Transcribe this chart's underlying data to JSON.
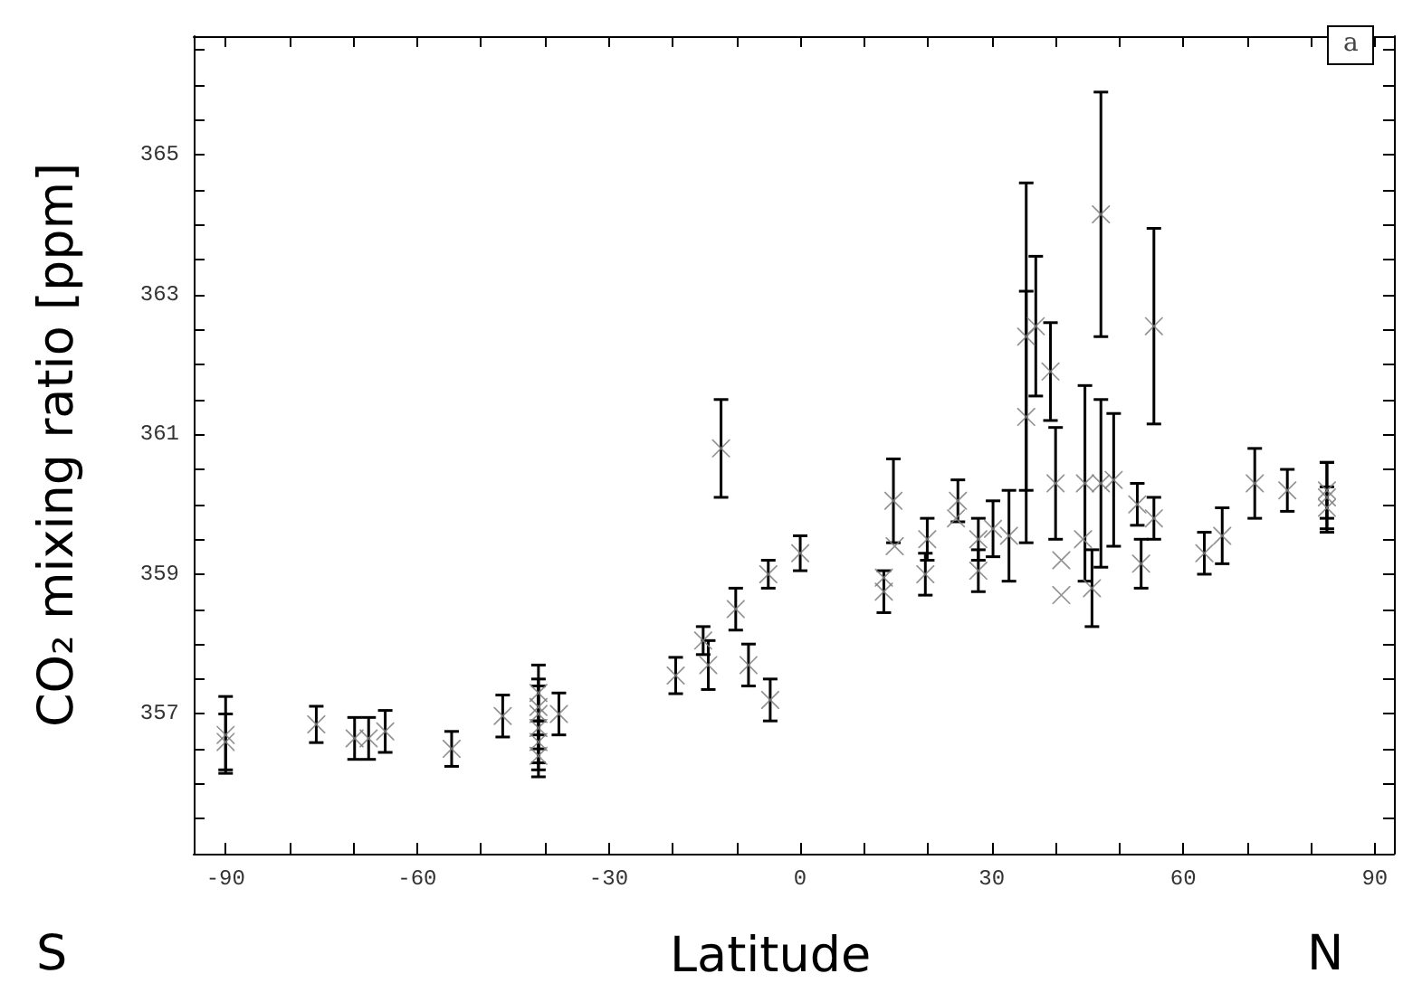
{
  "chart_data": {
    "type": "scatter",
    "xlabel": "Latitude",
    "ylabel": "CO₂ mixing ratio [ppm]",
    "annotations": [
      "S",
      "N",
      "a"
    ],
    "xlim": [
      -95,
      93
    ],
    "ylim": [
      355,
      366.7
    ],
    "xticks": [
      -90,
      {
        "value": -80,
        "label": null
      },
      {
        "value": -70,
        "label": null
      },
      -60,
      {
        "value": -50,
        "label": null
      },
      {
        "value": -40,
        "label": null
      },
      -30,
      {
        "value": -20,
        "label": null
      },
      {
        "value": -10,
        "label": null
      },
      0,
      {
        "value": 10,
        "label": null
      },
      {
        "value": 20,
        "label": null
      },
      30,
      {
        "value": 40,
        "label": null
      },
      {
        "value": 50,
        "label": null
      },
      60,
      {
        "value": 70,
        "label": null
      },
      {
        "value": 80,
        "label": null
      },
      90
    ],
    "yticks": [
      {
        "value": 355.5,
        "label": null
      },
      {
        "value": 356,
        "label": null
      },
      {
        "value": 356.5,
        "label": null
      },
      357,
      {
        "value": 357.5,
        "label": null
      },
      {
        "value": 358,
        "label": null
      },
      {
        "value": 358.5,
        "label": null
      },
      359,
      {
        "value": 359.5,
        "label": null
      },
      {
        "value": 360,
        "label": null
      },
      {
        "value": 360.5,
        "label": null
      },
      361,
      {
        "value": 361.5,
        "label": null
      },
      {
        "value": 362,
        "label": null
      },
      {
        "value": 362.5,
        "label": null
      },
      363,
      {
        "value": 363.5,
        "label": null
      },
      {
        "value": 364,
        "label": null
      },
      {
        "value": 364.5,
        "label": null
      },
      365,
      {
        "value": 365.5,
        "label": null
      },
      {
        "value": 366,
        "label": null
      },
      {
        "value": 366.5,
        "label": null
      }
    ],
    "marker": "cross",
    "grid": false,
    "series": [
      {
        "color": "#808080",
        "x": [
          -90,
          -90,
          -75.8,
          -69.8,
          -67.6,
          -65,
          -54.6,
          -46.6,
          -41,
          -41,
          -41,
          -41,
          -41,
          -41,
          -37.8,
          -19.5,
          -15.2,
          -14.4,
          -10.1,
          -8.1,
          -4.7,
          -5,
          0,
          -12.4,
          13.1,
          13.1,
          14.6,
          14.8,
          19.6,
          19.9,
          24.7,
          24.4,
          27.9,
          27.9,
          30.2,
          32.7,
          35.4,
          35.4,
          36.9,
          39.2,
          40,
          40.9,
          40.9,
          44.6,
          44.3,
          45.7,
          47.1,
          47.1,
          49.1,
          52.8,
          53.4,
          55.4,
          55.4,
          63.3,
          66.1,
          71.2,
          76.3,
          82.5,
          82.5,
          82.5
        ],
        "values": [
          356.7,
          356.6,
          356.85,
          356.65,
          356.65,
          356.75,
          356.5,
          356.97,
          357.3,
          357,
          356.8,
          356.6,
          356.4,
          357.1,
          357,
          357.55,
          358.05,
          357.7,
          358.5,
          357.7,
          357.2,
          359,
          359.3,
          360.8,
          358.75,
          358.95,
          360.05,
          359.4,
          359,
          359.5,
          360.05,
          359.8,
          359.5,
          359.05,
          359.65,
          359.55,
          362.4,
          361.25,
          362.55,
          361.9,
          360.3,
          359.2,
          358.7,
          360.3,
          359.5,
          358.8,
          364.15,
          360.3,
          360.35,
          360,
          359.15,
          359.8,
          362.55,
          359.3,
          359.55,
          360.3,
          360.2,
          360.2,
          360.1,
          359.95
        ],
        "errors": [
          0.55,
          0.4,
          0.26,
          0.3,
          0.3,
          0.3,
          0.25,
          0.3,
          0.4,
          0.5,
          0.6,
          0.3,
          0.3,
          null,
          0.3,
          0.26,
          0.2,
          0.35,
          0.3,
          0.3,
          0.3,
          0.2,
          0.25,
          0.7,
          0.3,
          null,
          0.6,
          null,
          0.3,
          0.3,
          0.3,
          null,
          0.3,
          0.3,
          0.4,
          0.65,
          2.2,
          1.8,
          1,
          0.7,
          0.8,
          null,
          null,
          1.4,
          null,
          0.55,
          1.75,
          1.2,
          0.95,
          0.3,
          0.35,
          0.3,
          1.4,
          0.3,
          0.4,
          0.5,
          0.3,
          0.4,
          0.5,
          0.3
        ]
      }
    ]
  }
}
